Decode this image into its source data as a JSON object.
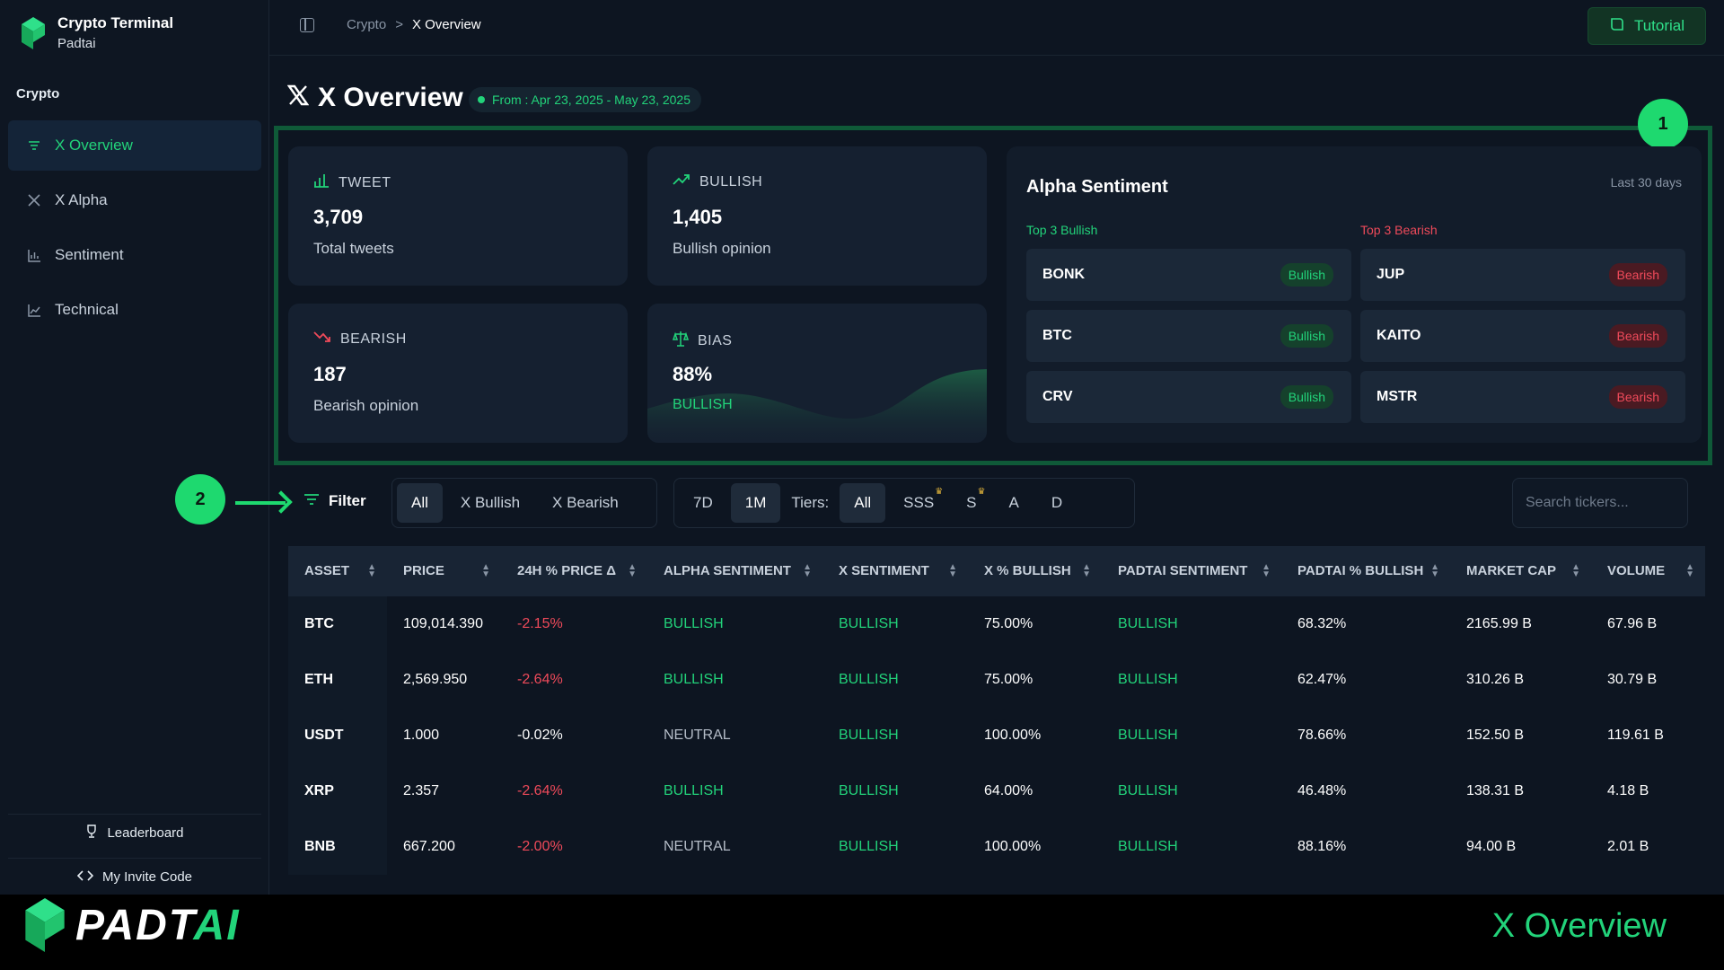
{
  "brand": {
    "title": "Crypto Terminal",
    "subtitle": "Padtai"
  },
  "sidebar": {
    "section": "Crypto",
    "items": [
      {
        "label": "X Overview",
        "icon": "list-icon",
        "active": true
      },
      {
        "label": "X Alpha",
        "icon": "x-icon"
      },
      {
        "label": "Sentiment",
        "icon": "bar-chart-icon"
      },
      {
        "label": "Technical",
        "icon": "line-chart-icon"
      }
    ],
    "leaderboard": "Leaderboard",
    "invite": "My Invite Code"
  },
  "breadcrumb": {
    "parent": "Crypto",
    "separator": ">",
    "current": "X Overview"
  },
  "tutorial": "Tutorial",
  "page": {
    "title": "X Overview",
    "date_range": "From : Apr 23, 2025 - May 23, 2025"
  },
  "markers": {
    "one": "1",
    "two": "2"
  },
  "stats": {
    "tweet": {
      "label": "TWEET",
      "value": "3,709",
      "sub": "Total tweets"
    },
    "bullish": {
      "label": "BULLISH",
      "value": "1,405",
      "sub": "Bullish opinion"
    },
    "bearish": {
      "label": "BEARISH",
      "value": "187",
      "sub": "Bearish opinion"
    },
    "bias": {
      "label": "BIAS",
      "value": "88%",
      "sub": "BULLISH"
    }
  },
  "alpha": {
    "title": "Alpha Sentiment",
    "range": "Last 30 days",
    "bull_label": "Top 3 Bullish",
    "bear_label": "Top 3 Bearish",
    "bullish": [
      {
        "name": "BONK",
        "badge": "Bullish"
      },
      {
        "name": "BTC",
        "badge": "Bullish"
      },
      {
        "name": "CRV",
        "badge": "Bullish"
      }
    ],
    "bearish": [
      {
        "name": "JUP",
        "badge": "Bearish"
      },
      {
        "name": "KAITO",
        "badge": "Bearish"
      },
      {
        "name": "MSTR",
        "badge": "Bearish"
      }
    ]
  },
  "filters": {
    "label": "Filter",
    "sentiment": [
      "All",
      "X Bullish",
      "X Bearish"
    ],
    "period": [
      "7D",
      "1M"
    ],
    "tiers_label": "Tiers:",
    "tiers": [
      "All",
      "SSS",
      "S",
      "A",
      "D"
    ],
    "search_placeholder": "Search tickers..."
  },
  "table": {
    "headers": [
      "ASSET",
      "PRICE",
      "24H % PRICE Δ",
      "ALPHA SENTIMENT",
      "X SENTIMENT",
      "X % BULLISH",
      "PADTAI SENTIMENT",
      "PADTAI % BULLISH",
      "MARKET CAP",
      "VOLUME"
    ],
    "rows": [
      [
        "BTC",
        "109,014.390",
        "-2.15%",
        "BULLISH",
        "BULLISH",
        "75.00%",
        "BULLISH",
        "68.32%",
        "2165.99 B",
        "67.96 B"
      ],
      [
        "ETH",
        "2,569.950",
        "-2.64%",
        "BULLISH",
        "BULLISH",
        "75.00%",
        "BULLISH",
        "62.47%",
        "310.26 B",
        "30.79 B"
      ],
      [
        "USDT",
        "1.000",
        "-0.02%",
        "NEUTRAL",
        "BULLISH",
        "100.00%",
        "BULLISH",
        "78.66%",
        "152.50 B",
        "119.61 B"
      ],
      [
        "XRP",
        "2.357",
        "-2.64%",
        "BULLISH",
        "BULLISH",
        "64.00%",
        "BULLISH",
        "46.48%",
        "138.31 B",
        "4.18 B"
      ],
      [
        "BNB",
        "667.200",
        "-2.00%",
        "NEUTRAL",
        "BULLISH",
        "100.00%",
        "BULLISH",
        "88.16%",
        "94.00 B",
        "2.01 B"
      ]
    ]
  },
  "footer": {
    "logo_main": "PADT",
    "logo_accent": "AI",
    "title": "X Overview"
  },
  "colors": {
    "accent": "#22d37a",
    "bearish": "#ef4a5a",
    "background": "#0d1521"
  }
}
